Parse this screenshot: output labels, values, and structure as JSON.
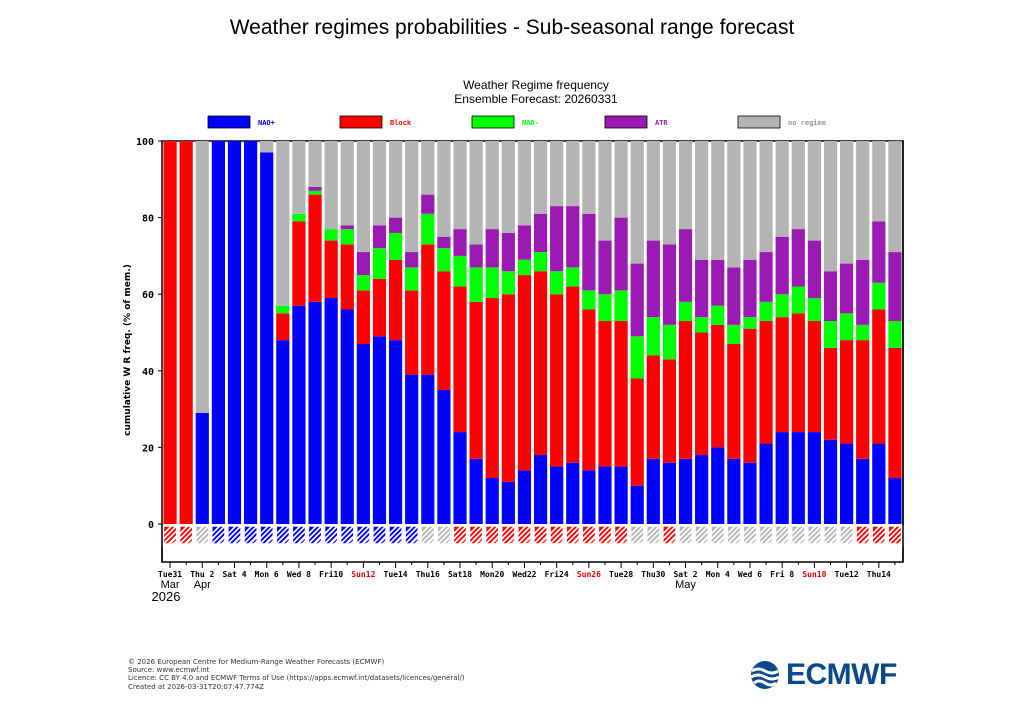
{
  "page": {
    "title": "Weather regimes probabilities - Sub-seasonal range forecast"
  },
  "footer": {
    "lines": [
      "© 2026 European Centre for Medium-Range Weather Forecasts (ECMWF)",
      "Source: www.ecmwf.int",
      "Licence: CC BY 4.0 and ECMWF Terms of Use (https://apps.ecmwf.int/datasets/licences/general/)",
      "Created at 2026-03-31T20:07:47.774Z"
    ]
  },
  "logo": {
    "text": "ECMWF",
    "color": "#0a4a8c"
  },
  "chart_data": {
    "type": "bar",
    "stacked": true,
    "title": "Weather Regime frequency",
    "subtitle": "Ensemble Forecast: 20260331",
    "ylabel": "cumulative W R freq. (% of mem.)",
    "ylim": [
      0,
      100
    ],
    "yticks": [
      0,
      20,
      40,
      60,
      80,
      100
    ],
    "grid": false,
    "legend_position": "top",
    "series": [
      {
        "name": "NAO+",
        "color": "#0000ff",
        "values": [
          0,
          0,
          29,
          100,
          100,
          100,
          97,
          48,
          57,
          58,
          59,
          56,
          47,
          49,
          48,
          39,
          39,
          35,
          24,
          17,
          12,
          11,
          14,
          18,
          15,
          16,
          14,
          15,
          15,
          10,
          17,
          16,
          17,
          18,
          20,
          17,
          16,
          21,
          24,
          24,
          24,
          22,
          21,
          17,
          21,
          12
        ]
      },
      {
        "name": "Block",
        "color": "#ff0000",
        "values": [
          100,
          100,
          0,
          0,
          0,
          0,
          0,
          7,
          22,
          28,
          15,
          17,
          14,
          15,
          21,
          22,
          34,
          31,
          38,
          41,
          47,
          49,
          51,
          48,
          45,
          46,
          42,
          38,
          38,
          28,
          27,
          27,
          36,
          32,
          32,
          30,
          35,
          32,
          30,
          31,
          29,
          24,
          27,
          31,
          35,
          34
        ]
      },
      {
        "name": "NAO-",
        "color": "#00ff00",
        "values": [
          0,
          0,
          0,
          0,
          0,
          0,
          0,
          2,
          2,
          1,
          3,
          4,
          4,
          8,
          7,
          6,
          8,
          6,
          8,
          9,
          8,
          6,
          4,
          5,
          6,
          5,
          5,
          7,
          8,
          11,
          10,
          9,
          5,
          4,
          5,
          5,
          3,
          5,
          6,
          7,
          6,
          7,
          7,
          4,
          7,
          7
        ]
      },
      {
        "name": "ATR",
        "color": "#9a1ab3",
        "values": [
          0,
          0,
          0,
          0,
          0,
          0,
          0,
          0,
          0,
          1,
          0,
          1,
          6,
          6,
          4,
          4,
          5,
          3,
          7,
          6,
          10,
          10,
          9,
          10,
          17,
          16,
          20,
          14,
          19,
          19,
          20,
          21,
          19,
          15,
          12,
          15,
          15,
          13,
          15,
          15,
          15,
          13,
          13,
          17,
          16,
          18
        ]
      },
      {
        "name": "no regime",
        "color": "#b4b4b4",
        "values": [
          0,
          0,
          71,
          0,
          0,
          0,
          3,
          43,
          19,
          12,
          23,
          22,
          29,
          22,
          20,
          29,
          14,
          25,
          23,
          27,
          23,
          24,
          22,
          19,
          17,
          17,
          19,
          26,
          20,
          32,
          26,
          27,
          23,
          31,
          31,
          33,
          31,
          29,
          25,
          23,
          26,
          34,
          32,
          31,
          21,
          29
        ]
      }
    ],
    "daily_regime": [
      "Block",
      "Block",
      "no regime",
      "NAO+",
      "NAO+",
      "NAO+",
      "NAO+",
      "NAO+",
      "NAO+",
      "NAO+",
      "NAO+",
      "NAO+",
      "NAO+",
      "NAO+",
      "NAO+",
      "NAO+",
      "no regime",
      "no regime",
      "Block",
      "Block",
      "Block",
      "Block",
      "Block",
      "Block",
      "Block",
      "Block",
      "Block",
      "Block",
      "Block",
      "no regime",
      "no regime",
      "Block",
      "no regime",
      "no regime",
      "no regime",
      "no regime",
      "no regime",
      "no regime",
      "no regime",
      "no regime",
      "no regime",
      "no regime",
      "no regime",
      "Block",
      "Block",
      "Block"
    ],
    "x_tick_labels": [
      {
        "label": "Tue31",
        "index": 0,
        "red": false
      },
      {
        "label": "Thu 2",
        "index": 2,
        "red": false
      },
      {
        "label": "Sat 4",
        "index": 4,
        "red": false
      },
      {
        "label": "Mon 6",
        "index": 6,
        "red": false
      },
      {
        "label": "Wed 8",
        "index": 8,
        "red": false
      },
      {
        "label": "Fri10",
        "index": 10,
        "red": false
      },
      {
        "label": "Sun12",
        "index": 12,
        "red": true
      },
      {
        "label": "Tue14",
        "index": 14,
        "red": false
      },
      {
        "label": "Thu16",
        "index": 16,
        "red": false
      },
      {
        "label": "Sat18",
        "index": 18,
        "red": false
      },
      {
        "label": "Mon20",
        "index": 20,
        "red": false
      },
      {
        "label": "Wed22",
        "index": 22,
        "red": false
      },
      {
        "label": "Fri24",
        "index": 24,
        "red": false
      },
      {
        "label": "Sun26",
        "index": 26,
        "red": true
      },
      {
        "label": "Tue28",
        "index": 28,
        "red": false
      },
      {
        "label": "Thu30",
        "index": 30,
        "red": false
      },
      {
        "label": "Sat 2",
        "index": 32,
        "red": false
      },
      {
        "label": "Mon 4",
        "index": 34,
        "red": false
      },
      {
        "label": "Wed 6",
        "index": 36,
        "red": false
      },
      {
        "label": "Fri 8",
        "index": 38,
        "red": false
      },
      {
        "label": "Sun10",
        "index": 40,
        "red": true
      },
      {
        "label": "Tue12",
        "index": 42,
        "red": false
      },
      {
        "label": "Thu14",
        "index": 44,
        "red": false
      }
    ],
    "month_labels": [
      {
        "label": "Mar",
        "index": 0
      },
      {
        "label": "Apr",
        "index": 2
      },
      {
        "label": "May",
        "index": 32
      }
    ],
    "year_label": "2026"
  }
}
